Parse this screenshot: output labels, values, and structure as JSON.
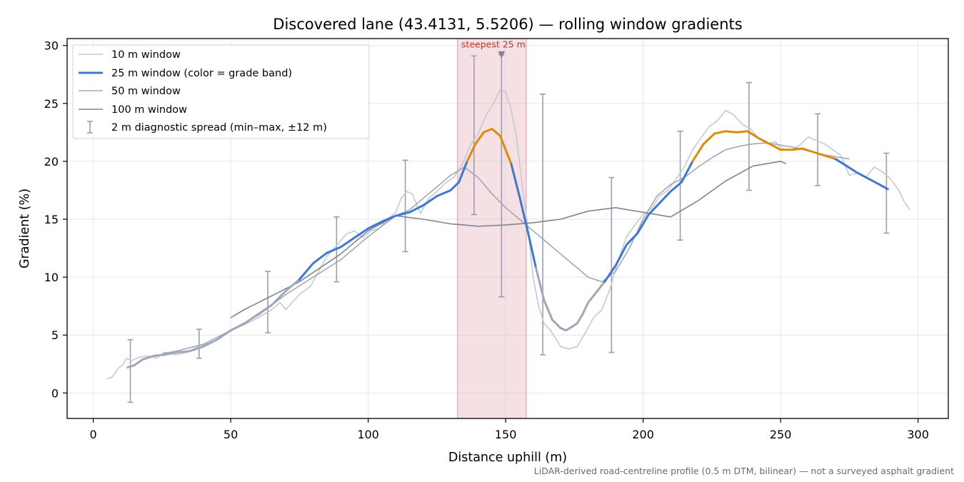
{
  "chart_data": {
    "type": "line",
    "title": "Discovered lane (43.4131, 5.5206) — rolling window gradients",
    "xlabel": "Distance uphill (m)",
    "ylabel": "Gradient (%)",
    "xlim": [
      -9.5,
      311
    ],
    "ylim": [
      -2.2,
      30.6
    ],
    "xticks": [
      0,
      50,
      100,
      150,
      200,
      250,
      300
    ],
    "yticks": [
      0,
      5,
      10,
      15,
      20,
      25,
      30
    ],
    "grid": true,
    "legend_position": "top-left",
    "caption": "LiDAR-derived road-centreline profile (0.5 m DTM, bilinear) — not a surveyed asphalt gradient",
    "highlight": {
      "label": "steepest 25 m",
      "x_start": 132.5,
      "x_end": 157.5,
      "peak_x": 148.5,
      "peak_y": 29.2,
      "color": "#e8b4bc"
    },
    "colors": {
      "window_10": "#c5c9d6",
      "window_25_blue": "#3f78d4",
      "window_25_orange": "#e08a0a",
      "window_25_gray": "#a0a8b8",
      "window_50": "#a0a8b8",
      "window_100": "#7e8594",
      "spread": "#9c9cb8"
    },
    "series": [
      {
        "name": "10 m window",
        "x": [
          5,
          7,
          9,
          11,
          12,
          14,
          17,
          20,
          23,
          26,
          30,
          34,
          38,
          42,
          46,
          50,
          55,
          60,
          65,
          68,
          70,
          75,
          79,
          82,
          85,
          88,
          92,
          95,
          98,
          101,
          104,
          107,
          110,
          112,
          114,
          116,
          119,
          122,
          125,
          128,
          131,
          134,
          137,
          140,
          143,
          146,
          148,
          150,
          152,
          154,
          156,
          158,
          160,
          162,
          164,
          166,
          168,
          170,
          173,
          176,
          179,
          182,
          185,
          188,
          191,
          194,
          197,
          200,
          203,
          206,
          209,
          212,
          215,
          218,
          221,
          224,
          227,
          230,
          233,
          236,
          239,
          242,
          245,
          248,
          251,
          254,
          257,
          260,
          263,
          266,
          269,
          272,
          275,
          278,
          281,
          284,
          287,
          290,
          293,
          295,
          297
        ],
        "y": [
          1.2,
          1.4,
          2.1,
          2.5,
          3.0,
          2.8,
          3.1,
          3.2,
          3.0,
          3.5,
          3.3,
          3.5,
          4.0,
          4.3,
          4.7,
          5.4,
          5.9,
          6.5,
          7.2,
          7.8,
          7.2,
          8.5,
          9.2,
          10.5,
          11.8,
          12.6,
          13.7,
          14.0,
          13.4,
          14.0,
          14.2,
          15.0,
          15.6,
          16.8,
          17.4,
          17.2,
          15.5,
          16.8,
          17.4,
          18.1,
          18.6,
          19.6,
          21.3,
          22.4,
          24.0,
          25.2,
          26.2,
          26.0,
          24.5,
          22.0,
          18.0,
          14.5,
          10.0,
          7.5,
          6.0,
          5.5,
          4.8,
          4.0,
          3.8,
          4.0,
          5.2,
          6.5,
          7.2,
          9.0,
          11.5,
          13.5,
          14.5,
          15.4,
          15.9,
          17.0,
          17.5,
          18.5,
          19.5,
          21.0,
          22.0,
          23.0,
          23.5,
          24.4,
          24.0,
          23.2,
          22.8,
          22.0,
          21.5,
          21.7,
          21.0,
          21.0,
          21.4,
          22.1,
          21.8,
          21.5,
          21.0,
          20.5,
          18.8,
          19.0,
          18.6,
          19.5,
          19.1,
          18.5,
          17.5,
          16.5,
          15.8
        ]
      },
      {
        "name": "25 m window (color = grade band)",
        "x": [
          12.5,
          15,
          18,
          22,
          26,
          30,
          35,
          40,
          45,
          50,
          55,
          60,
          65,
          70,
          75,
          80,
          85,
          90,
          95,
          100,
          105,
          110,
          115,
          120,
          125,
          130,
          133,
          136,
          139,
          142,
          145,
          148,
          150,
          152,
          155,
          158,
          161,
          164,
          167,
          170,
          172,
          174,
          176,
          178,
          180,
          183,
          186,
          190,
          194,
          198,
          202,
          206,
          210,
          214,
          218,
          222,
          226,
          230,
          234,
          238,
          242,
          246,
          250,
          254,
          258,
          262,
          266,
          270,
          274,
          278,
          282,
          286,
          289
        ],
        "y": [
          2.2,
          2.4,
          2.9,
          3.2,
          3.3,
          3.5,
          3.6,
          4.0,
          4.6,
          5.4,
          6.0,
          6.8,
          7.6,
          8.8,
          9.8,
          11.2,
          12.1,
          12.6,
          13.4,
          14.2,
          14.8,
          15.3,
          15.6,
          16.2,
          17.0,
          17.5,
          18.2,
          20.0,
          21.5,
          22.5,
          22.8,
          22.2,
          21.0,
          19.8,
          17.0,
          14.0,
          10.8,
          8.0,
          6.3,
          5.6,
          5.4,
          5.7,
          6.0,
          6.8,
          7.8,
          8.7,
          9.6,
          11.0,
          12.8,
          13.8,
          15.4,
          16.4,
          17.4,
          18.2,
          20.0,
          21.5,
          22.4,
          22.6,
          22.5,
          22.6,
          22.0,
          21.5,
          21.0,
          21.0,
          21.1,
          20.8,
          20.5,
          20.2,
          19.6,
          19.0,
          18.5,
          18.0,
          17.6
        ]
      },
      {
        "name": "50 m window",
        "x": [
          25,
          30,
          40,
          50,
          60,
          70,
          80,
          90,
          100,
          110,
          115,
          120,
          125,
          130,
          135,
          140,
          145,
          150,
          155,
          160,
          165,
          170,
          175,
          180,
          185,
          190,
          195,
          200,
          205,
          210,
          215,
          220,
          225,
          230,
          235,
          240,
          245,
          250,
          255,
          260,
          265,
          270,
          275
        ],
        "y": [
          3.4,
          3.6,
          4.2,
          5.4,
          6.7,
          8.5,
          10.0,
          11.5,
          13.5,
          15.3,
          15.8,
          16.8,
          17.8,
          18.8,
          19.5,
          18.6,
          17.2,
          16.0,
          15.0,
          14.0,
          13.0,
          12.0,
          11.0,
          10.0,
          9.6,
          10.5,
          12.5,
          15.0,
          17.0,
          18.0,
          18.6,
          19.5,
          20.3,
          21.0,
          21.3,
          21.5,
          21.6,
          21.4,
          21.2,
          20.9,
          20.6,
          20.4,
          20.2
        ]
      },
      {
        "name": "100 m window",
        "x": [
          50,
          55,
          60,
          65,
          70,
          75,
          80,
          90,
          100,
          110,
          120,
          130,
          140,
          150,
          160,
          170,
          180,
          190,
          200,
          210,
          220,
          230,
          240,
          250,
          252
        ],
        "y": [
          6.5,
          7.2,
          7.8,
          8.4,
          9.0,
          9.6,
          10.4,
          12.0,
          14.0,
          15.3,
          15.0,
          14.6,
          14.4,
          14.5,
          14.7,
          15.0,
          15.7,
          16.0,
          15.6,
          15.2,
          16.6,
          18.3,
          19.6,
          20.0,
          19.8
        ]
      }
    ],
    "spread_bars": {
      "name": "2 m diagnostic spread (min–max, ±12 m)",
      "x": [
        13.5,
        38.5,
        63.5,
        88.5,
        113.5,
        138.5,
        148.5,
        163.5,
        188.5,
        213.5,
        238.5,
        263.5,
        288.5
      ],
      "y_min": [
        -0.8,
        3.0,
        5.2,
        9.6,
        12.2,
        15.4,
        8.3,
        3.3,
        3.5,
        13.2,
        17.5,
        17.9,
        13.8
      ],
      "y_max": [
        4.6,
        5.5,
        10.5,
        15.2,
        20.1,
        29.1,
        29.2,
        25.8,
        18.6,
        22.6,
        26.8,
        24.1,
        20.7
      ]
    }
  }
}
